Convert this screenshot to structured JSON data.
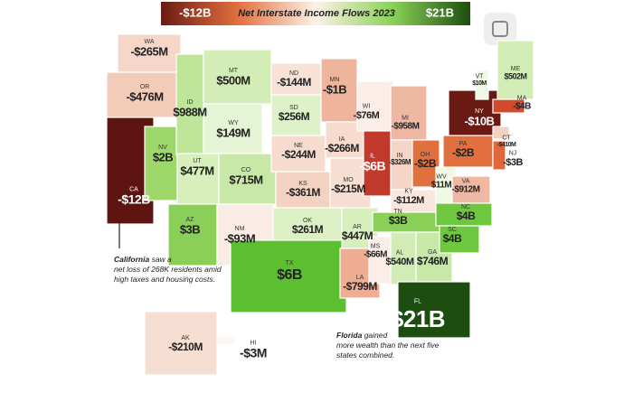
{
  "legend": {
    "min": "-$12B",
    "title": "Net Interstate Income Flows 2023",
    "max": "$21B"
  },
  "states": [
    {
      "abbr": "WA",
      "value": "-$265M",
      "color": "#f5d6c8"
    },
    {
      "abbr": "OR",
      "value": "-$476M",
      "color": "#f2cbb9"
    },
    {
      "abbr": "CA",
      "value": "-$12B",
      "color": "#5e1410"
    },
    {
      "abbr": "NV",
      "value": "$2B",
      "color": "#9ed86b"
    },
    {
      "abbr": "ID",
      "value": "$988M",
      "color": "#bfe59a"
    },
    {
      "abbr": "MT",
      "value": "$500M",
      "color": "#d3edb6"
    },
    {
      "abbr": "WY",
      "value": "$149M",
      "color": "#e6f4d6"
    },
    {
      "abbr": "UT",
      "value": "$477M",
      "color": "#d6efbb"
    },
    {
      "abbr": "AZ",
      "value": "$3B",
      "color": "#8ad058"
    },
    {
      "abbr": "CO",
      "value": "$715M",
      "color": "#c8e8a8"
    },
    {
      "abbr": "NM",
      "value": "-$93M",
      "color": "#faebe4"
    },
    {
      "abbr": "ND",
      "value": "-$144M",
      "color": "#f8e2d8"
    },
    {
      "abbr": "SD",
      "value": "$256M",
      "color": "#def1c8"
    },
    {
      "abbr": "NE",
      "value": "-$244M",
      "color": "#f6dbce"
    },
    {
      "abbr": "KS",
      "value": "-$361M",
      "color": "#f4d2c2"
    },
    {
      "abbr": "OK",
      "value": "$261M",
      "color": "#dcf0c6"
    },
    {
      "abbr": "TX",
      "value": "$6B",
      "color": "#5cbf2f"
    },
    {
      "abbr": "MN",
      "value": "-$1B",
      "color": "#eeb49c"
    },
    {
      "abbr": "IA",
      "value": "-$266M",
      "color": "#f6dbce"
    },
    {
      "abbr": "MO",
      "value": "-$215M",
      "color": "#f7ded3"
    },
    {
      "abbr": "AR",
      "value": "$447M",
      "color": "#d6efbc"
    },
    {
      "abbr": "LA",
      "value": "-$799M",
      "color": "#efae94"
    },
    {
      "abbr": "WI",
      "value": "-$76M",
      "color": "#fbeee8"
    },
    {
      "abbr": "IL",
      "value": "-$6B",
      "color": "#c0392b"
    },
    {
      "abbr": "MS",
      "value": "-$66M",
      "color": "#fbeee8"
    },
    {
      "abbr": "MI",
      "value": "-$958M",
      "color": "#efb8a2"
    },
    {
      "abbr": "IN",
      "value": "-$326M",
      "color": "#f5d5c6"
    },
    {
      "abbr": "KY",
      "value": "-$112M",
      "color": "#f9e6dd"
    },
    {
      "abbr": "TN",
      "value": "$3B",
      "color": "#8ad058"
    },
    {
      "abbr": "AL",
      "value": "$540M",
      "color": "#d1ecb4"
    },
    {
      "abbr": "GA",
      "value": "$746M",
      "color": "#c8e8a8"
    },
    {
      "abbr": "FL",
      "value": "$21B",
      "color": "#1d4d10"
    },
    {
      "abbr": "OH",
      "value": "-$2B",
      "color": "#e2703f"
    },
    {
      "abbr": "WV",
      "value": "$11M",
      "color": "#eef8e4"
    },
    {
      "abbr": "VA",
      "value": "-$912M",
      "color": "#efb8a2"
    },
    {
      "abbr": "NC",
      "value": "$4B",
      "color": "#6fc740"
    },
    {
      "abbr": "SC",
      "value": "$4B",
      "color": "#6fc740"
    },
    {
      "abbr": "PA",
      "value": "-$2B",
      "color": "#e2703f"
    },
    {
      "abbr": "NY",
      "value": "-$10B",
      "color": "#6a1a12"
    },
    {
      "abbr": "VT",
      "value": "$10M",
      "color": "#eef8e4"
    },
    {
      "abbr": "ME",
      "value": "$502M",
      "color": "#d3edb6"
    },
    {
      "abbr": "MA",
      "value": "-$4B",
      "color": "#d24a2e"
    },
    {
      "abbr": "CT",
      "value": "-$410M",
      "color": "#f4d2c2"
    },
    {
      "abbr": "NJ",
      "value": "-$3B",
      "color": "#e0673a"
    },
    {
      "abbr": "AK",
      "value": "-$210M",
      "color": "#f7ded3"
    },
    {
      "abbr": "HI",
      "value": "-$3M",
      "color": "#fdf6f2"
    }
  ],
  "notes": {
    "california": {
      "bold": "California",
      "text": "saw a net loss of 268K residents amid high taxes and housing costs."
    },
    "florida": {
      "bold": "Florida",
      "text": "gained more wealth than the next five states combined."
    }
  }
}
